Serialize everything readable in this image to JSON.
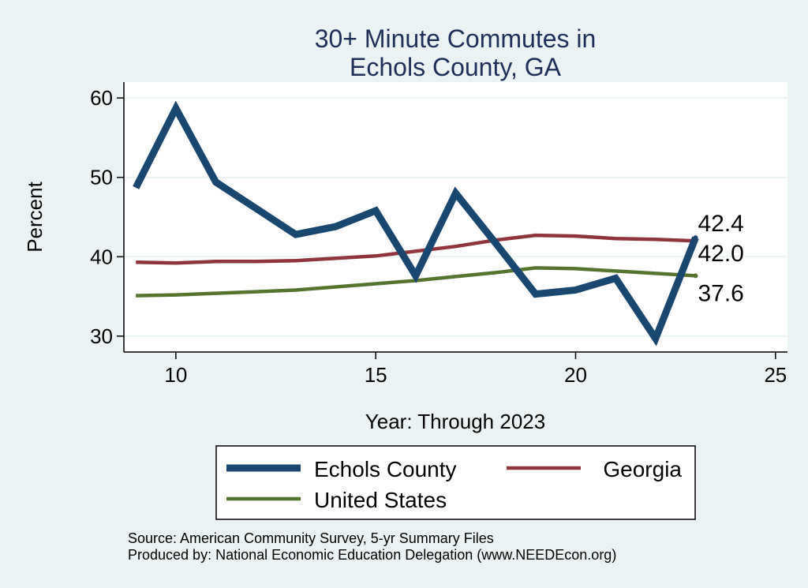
{
  "chart_data": {
    "type": "line",
    "title": [
      "30+ Minute Commutes in",
      "Echols County, GA"
    ],
    "xlabel": "Year: Through 2023",
    "ylabel": "Percent",
    "xlim": [
      8.7,
      25.3
    ],
    "ylim": [
      28,
      62
    ],
    "xticks": [
      10,
      15,
      20,
      25
    ],
    "yticks": [
      30,
      40,
      50,
      60
    ],
    "grid": true,
    "legend_position": "bottom",
    "series": [
      {
        "name": "Echols County",
        "color": "#1a476f",
        "x": [
          9,
          10,
          11,
          12,
          13,
          14,
          15,
          16,
          17,
          18,
          19,
          20,
          21,
          22,
          23
        ],
        "values": [
          48.7,
          58.7,
          49.4,
          46.1,
          42.8,
          43.8,
          45.8,
          37.6,
          48.0,
          41.7,
          35.3,
          35.8,
          37.3,
          29.7,
          42.4
        ],
        "end_label": "42.4"
      },
      {
        "name": "Georgia",
        "color": "#90353b",
        "x": [
          9,
          10,
          11,
          12,
          13,
          14,
          15,
          16,
          17,
          18,
          19,
          20,
          21,
          22,
          23
        ],
        "values": [
          39.3,
          39.2,
          39.4,
          39.4,
          39.5,
          39.8,
          40.1,
          40.7,
          41.3,
          42.1,
          42.7,
          42.6,
          42.3,
          42.2,
          42.0
        ],
        "end_label": "42.0"
      },
      {
        "name": "United States",
        "color": "#55752f",
        "x": [
          9,
          10,
          11,
          12,
          13,
          14,
          15,
          16,
          17,
          18,
          19,
          20,
          21,
          22,
          23
        ],
        "values": [
          35.1,
          35.2,
          35.4,
          35.6,
          35.8,
          36.2,
          36.6,
          37.0,
          37.5,
          38.0,
          38.6,
          38.5,
          38.2,
          37.9,
          37.6
        ],
        "end_label": "37.6"
      }
    ],
    "notes": [
      "Source: American Community Survey, 5-yr Summary Files",
      "Produced by: National Economic Education Delegation (www.NEEDEcon.org)"
    ]
  }
}
